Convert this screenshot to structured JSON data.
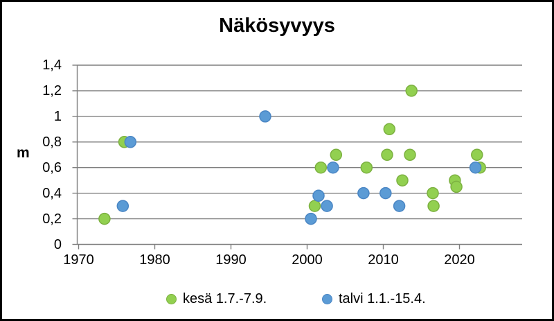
{
  "title": "Näkösyvyys",
  "y_axis": {
    "label": "m",
    "tick_labels": [
      "1,4",
      "1,2",
      "1",
      "0,8",
      "0,6",
      "0,4",
      "0,2",
      "0"
    ],
    "tick_values": [
      1.4,
      1.2,
      1.0,
      0.8,
      0.6,
      0.4,
      0.2,
      0
    ]
  },
  "x_axis": {
    "tick_labels": [
      "1970",
      "1980",
      "1990",
      "2000",
      "2010",
      "2020"
    ],
    "tick_values": [
      1970,
      1980,
      1990,
      2000,
      2010,
      2020
    ]
  },
  "legend": {
    "items": [
      {
        "label": "kesä 1.7.-7.9.",
        "color": "#92D050",
        "border": "#7CB140"
      },
      {
        "label": "talvi 1.1.-15.4.",
        "color": "#5B9BD5",
        "border": "#4A86C4"
      }
    ]
  },
  "colors": {
    "summer": "#92D050",
    "summer_border": "#7CB140",
    "winter": "#5B9BD5",
    "winter_border": "#4A86C4",
    "grid": "#7F7F7F",
    "text": "#000000",
    "frame": "#000000"
  },
  "chart_data": {
    "type": "scatter",
    "title": "Näkösyvyys",
    "xlabel": "",
    "ylabel": "m",
    "ylim": [
      0,
      1.4
    ],
    "y_tick_step": 0.2,
    "xlim": [
      1969.8,
      2028.2
    ],
    "x_ticks": [
      1970,
      1980,
      1990,
      2000,
      2010,
      2020
    ],
    "grid": true,
    "legend_position": "bottom",
    "series": [
      {
        "name": "kesä 1.7.-7.9.",
        "color": "#92D050",
        "points": [
          [
            1973.4,
            0.2
          ],
          [
            1976.0,
            0.8
          ],
          [
            2001.0,
            0.3
          ],
          [
            2001.8,
            0.6
          ],
          [
            2003.8,
            0.7
          ],
          [
            2007.8,
            0.6
          ],
          [
            2010.5,
            0.7
          ],
          [
            2010.8,
            0.9
          ],
          [
            2012.5,
            0.5
          ],
          [
            2013.5,
            0.7
          ],
          [
            2013.7,
            1.2
          ],
          [
            2016.5,
            0.4
          ],
          [
            2016.6,
            0.3
          ],
          [
            2019.4,
            0.5
          ],
          [
            2019.6,
            0.45
          ],
          [
            2022.3,
            0.7
          ],
          [
            2022.7,
            0.6
          ]
        ]
      },
      {
        "name": "talvi 1.1.-15.4.",
        "color": "#5B9BD5",
        "points": [
          [
            1975.8,
            0.3
          ],
          [
            1976.8,
            0.8
          ],
          [
            1994.5,
            1.0
          ],
          [
            2000.5,
            0.2
          ],
          [
            2001.5,
            0.38
          ],
          [
            2002.6,
            0.3
          ],
          [
            2003.4,
            0.6
          ],
          [
            2007.4,
            0.4
          ],
          [
            2010.3,
            0.4
          ],
          [
            2012.1,
            0.3
          ],
          [
            2022.1,
            0.6
          ]
        ]
      }
    ]
  }
}
